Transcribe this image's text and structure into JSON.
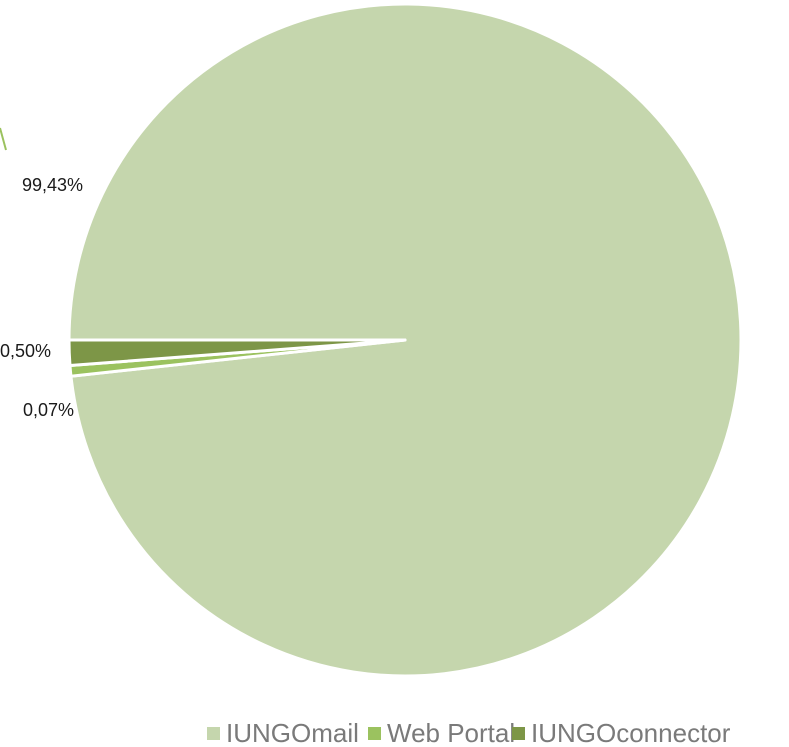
{
  "chart_data": {
    "type": "pie",
    "categories": [
      "IUNGOmail",
      "Web Portal",
      "IUNGOconnector"
    ],
    "values": [
      99.43,
      0.07,
      0.5
    ],
    "data_labels": [
      "99,43%",
      "0,07%",
      "0,50%"
    ],
    "colors": [
      "#c5d6ad",
      "#9bc25f",
      "#7d9647"
    ],
    "legend_position": "bottom"
  }
}
